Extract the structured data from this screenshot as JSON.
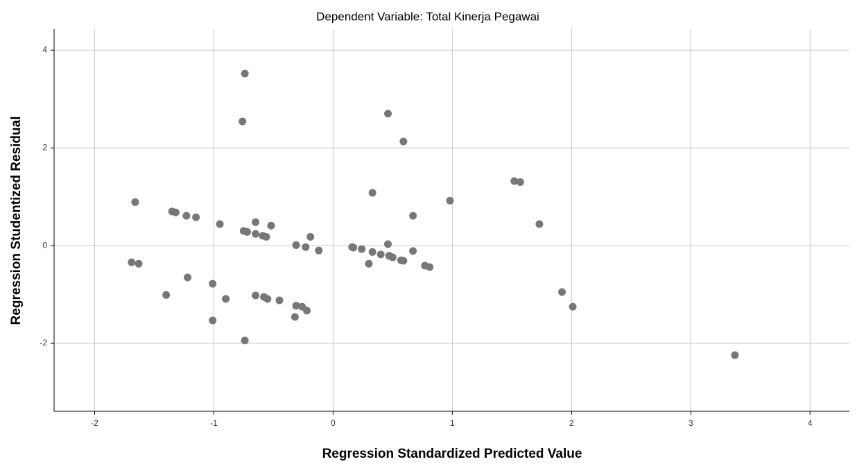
{
  "chart_data": {
    "type": "scatter",
    "title": "Dependent Variable: Total Kinerja Pegawai",
    "x_label": "Regression Standardized Predicted Value",
    "y_label": "Regression Studentized Residual",
    "color": "#777777",
    "grid": true,
    "xlim": [
      -2.34,
      4.33
    ],
    "ylim": [
      -3.39,
      4.43
    ],
    "xticks": [
      -2,
      -1,
      0,
      1,
      2,
      3,
      4
    ],
    "yticks": [
      -2,
      0,
      2,
      4
    ],
    "x": [
      -0.74,
      -0.76,
      0.46,
      0.59,
      0.33,
      0.98,
      1.52,
      1.57,
      1.73,
      0.67,
      -1.66,
      -1.35,
      -1.32,
      -1.23,
      -1.15,
      -0.95,
      -0.65,
      -0.52,
      -0.75,
      -0.72,
      -0.65,
      -0.59,
      -0.56,
      -0.19,
      -0.31,
      -0.23,
      -0.12,
      0.16,
      0.17,
      0.24,
      0.33,
      0.46,
      0.4,
      0.47,
      0.5,
      0.57,
      0.59,
      0.67,
      0.3,
      0.77,
      0.81,
      -1.69,
      -1.63,
      -1.22,
      -1.4,
      -1.01,
      -0.9,
      -0.65,
      -0.58,
      -0.55,
      -0.45,
      -0.31,
      -0.26,
      -0.22,
      -0.32,
      -1.01,
      -0.74,
      1.92,
      2.01,
      3.37
    ],
    "values": [
      3.52,
      2.54,
      2.7,
      2.13,
      1.08,
      0.92,
      1.32,
      1.3,
      0.44,
      0.61,
      0.89,
      0.7,
      0.68,
      0.61,
      0.58,
      0.44,
      0.48,
      0.41,
      0.3,
      0.28,
      0.24,
      0.2,
      0.18,
      0.18,
      0.01,
      -0.03,
      -0.1,
      -0.03,
      -0.04,
      -0.07,
      -0.13,
      0.03,
      -0.18,
      -0.21,
      -0.24,
      -0.3,
      -0.31,
      -0.11,
      -0.37,
      -0.41,
      -0.44,
      -0.34,
      -0.37,
      -0.65,
      -1.01,
      -0.78,
      -1.09,
      -1.02,
      -1.05,
      -1.09,
      -1.12,
      -1.23,
      -1.25,
      -1.33,
      -1.46,
      -1.53,
      -1.94,
      -0.95,
      -1.25,
      -2.24
    ]
  }
}
